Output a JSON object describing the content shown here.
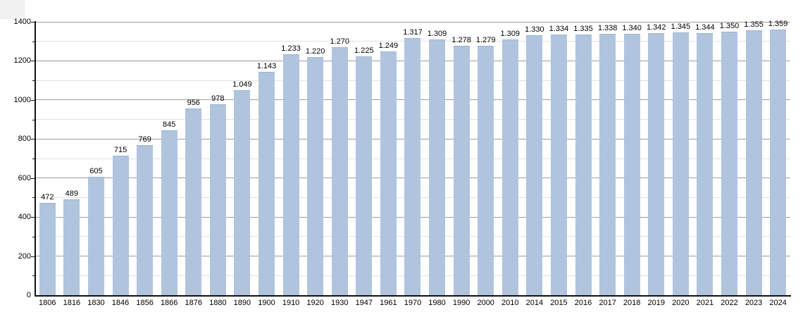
{
  "chart_data": {
    "type": "bar",
    "title": "",
    "xlabel": "",
    "ylabel": "",
    "categories": [
      "1806",
      "1816",
      "1830",
      "1846",
      "1856",
      "1866",
      "1876",
      "1880",
      "1890",
      "1900",
      "1910",
      "1920",
      "1930",
      "1947",
      "1961",
      "1970",
      "1980",
      "1990",
      "2000",
      "2010",
      "2014",
      "2015",
      "2016",
      "2017",
      "2018",
      "2019",
      "2020",
      "2021",
      "2022",
      "2023",
      "2024"
    ],
    "values": [
      472,
      489,
      605,
      715,
      769,
      845,
      956,
      978,
      1049,
      1143,
      1233,
      1220,
      1270,
      1225,
      1249,
      1317,
      1309,
      1278,
      1279,
      1309,
      1330,
      1334,
      1335,
      1338,
      1340,
      1342,
      1345,
      1344,
      1350,
      1355,
      1359
    ],
    "value_labels": [
      "472",
      "489",
      "605",
      "715",
      "769",
      "845",
      "956",
      "978",
      "1.049",
      "1.143",
      "1.233",
      "1.220",
      "1.270",
      "1.225",
      "1.249",
      "1.317",
      "1.309",
      "1.278",
      "1.279",
      "1.309",
      "1.330",
      "1.334",
      "1.335",
      "1.338",
      "1.340",
      "1.342",
      "1.345",
      "1.344",
      "1.350",
      "1.355",
      "1.359"
    ],
    "ylim": [
      0,
      1400
    ],
    "y_major_ticks": [
      0,
      200,
      400,
      600,
      800,
      1000,
      1200,
      1400
    ],
    "y_major_tick_labels": [
      "0",
      "200",
      "400",
      "600",
      "800",
      "1000",
      "1200",
      "1400"
    ],
    "y_minor_step": 100,
    "grid": "horizontal, major and minor lines",
    "legend_position": "none"
  },
  "style": {
    "bar_color": "#b0c4de",
    "bar_edge_color": "#9db5d1",
    "major_grid_color": "#9e9e9e",
    "minor_grid_color": "#e2e2e2",
    "axis_color": "#111111",
    "text_color": "#000000",
    "background_color": "#ffffff",
    "corner_artifact_color": "#f1f1f1"
  }
}
